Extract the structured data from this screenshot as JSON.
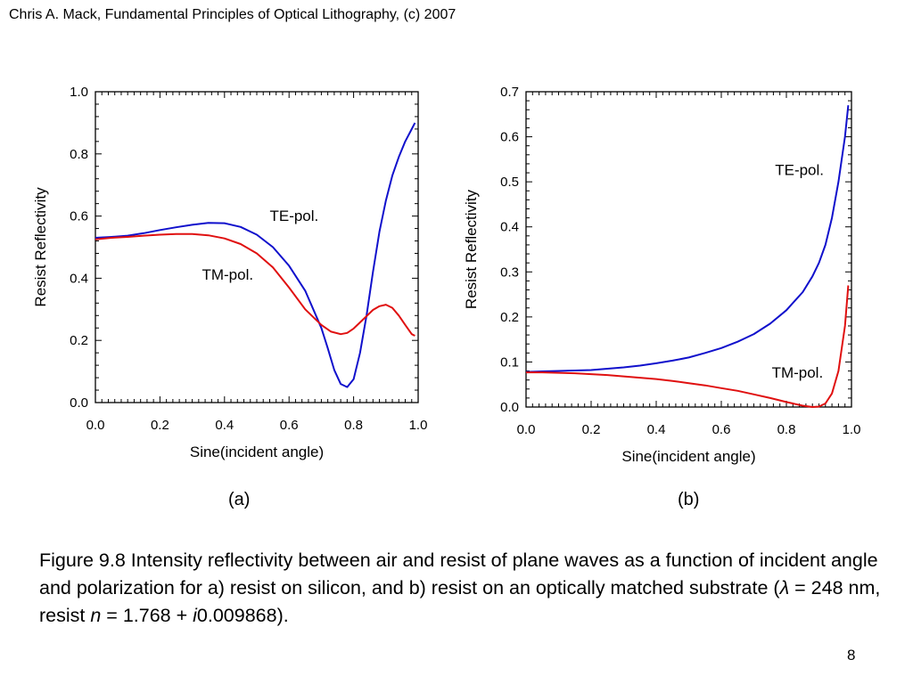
{
  "header": "Chris A. Mack, Fundamental Principles of Optical Lithography, (c) 2007",
  "panels": {
    "a": "(a)",
    "b": "(b)"
  },
  "caption": {
    "part1": "Figure 9.8  Intensity reflectivity between air and resist of plane waves as a function of incident angle and polarization for a) resist on silicon, and b) resist on an optically matched substrate (",
    "lambda": "λ",
    "part2": " = 248 nm, resist ",
    "n": "n",
    "part3": " = 1.768 + ",
    "i": "i",
    "part4": "0.009868)."
  },
  "page_number": "8",
  "colors": {
    "te": "#1010cc",
    "tm": "#e01010",
    "axis": "#000000"
  },
  "chart_data": [
    {
      "type": "line",
      "panel": "a",
      "xlabel": "Sine(incident angle)",
      "ylabel": "Resist Reflectivity",
      "xlim": [
        0,
        1.0
      ],
      "ylim": [
        0,
        1.0
      ],
      "xticks": [
        "0.0",
        "0.2",
        "0.4",
        "0.6",
        "0.8",
        "1.0"
      ],
      "yticks": [
        "0.0",
        "0.2",
        "0.4",
        "0.6",
        "0.8",
        "1.0"
      ],
      "annotations": [
        {
          "text": "TE-pol.",
          "x": 0.54,
          "y": 0.585
        },
        {
          "text": "TM-pol.",
          "x": 0.33,
          "y": 0.395
        }
      ],
      "series": [
        {
          "name": "TE-pol.",
          "color": "#1010cc",
          "x": [
            0.0,
            0.05,
            0.1,
            0.15,
            0.2,
            0.25,
            0.3,
            0.35,
            0.4,
            0.45,
            0.5,
            0.55,
            0.6,
            0.65,
            0.7,
            0.72,
            0.74,
            0.76,
            0.78,
            0.8,
            0.82,
            0.84,
            0.86,
            0.88,
            0.9,
            0.92,
            0.94,
            0.96,
            0.98,
            0.99
          ],
          "y": [
            0.53,
            0.533,
            0.537,
            0.545,
            0.555,
            0.564,
            0.572,
            0.578,
            0.577,
            0.565,
            0.54,
            0.5,
            0.44,
            0.36,
            0.24,
            0.175,
            0.105,
            0.06,
            0.05,
            0.075,
            0.16,
            0.28,
            0.42,
            0.55,
            0.65,
            0.73,
            0.79,
            0.84,
            0.88,
            0.9
          ]
        },
        {
          "name": "TM-pol.",
          "color": "#e01010",
          "x": [
            0.0,
            0.05,
            0.1,
            0.15,
            0.2,
            0.25,
            0.3,
            0.35,
            0.4,
            0.45,
            0.5,
            0.55,
            0.6,
            0.65,
            0.7,
            0.73,
            0.76,
            0.78,
            0.8,
            0.82,
            0.84,
            0.86,
            0.88,
            0.9,
            0.92,
            0.94,
            0.96,
            0.98,
            0.99
          ],
          "y": [
            0.525,
            0.53,
            0.533,
            0.537,
            0.54,
            0.542,
            0.542,
            0.538,
            0.528,
            0.51,
            0.48,
            0.435,
            0.37,
            0.3,
            0.25,
            0.228,
            0.22,
            0.224,
            0.238,
            0.258,
            0.278,
            0.298,
            0.31,
            0.315,
            0.305,
            0.28,
            0.25,
            0.22,
            0.215
          ]
        }
      ]
    },
    {
      "type": "line",
      "panel": "b",
      "xlabel": "Sine(incident angle)",
      "ylabel": "Resist Reflectivity",
      "xlim": [
        0,
        1.0
      ],
      "ylim": [
        0,
        0.7
      ],
      "xticks": [
        "0.0",
        "0.2",
        "0.4",
        "0.6",
        "0.8",
        "1.0"
      ],
      "yticks": [
        "0.0",
        "0.1",
        "0.2",
        "0.3",
        "0.4",
        "0.5",
        "0.6",
        "0.7"
      ],
      "annotations": [
        {
          "text": "TE-pol.",
          "x": 0.765,
          "y": 0.515
        },
        {
          "text": "TM-pol.",
          "x": 0.755,
          "y": 0.065
        }
      ],
      "series": [
        {
          "name": "TE-pol.",
          "color": "#1010cc",
          "x": [
            0.0,
            0.05,
            0.1,
            0.15,
            0.2,
            0.25,
            0.3,
            0.35,
            0.4,
            0.45,
            0.5,
            0.55,
            0.6,
            0.65,
            0.7,
            0.75,
            0.8,
            0.85,
            0.88,
            0.9,
            0.92,
            0.94,
            0.96,
            0.98,
            0.99
          ],
          "y": [
            0.078,
            0.079,
            0.08,
            0.081,
            0.082,
            0.085,
            0.088,
            0.092,
            0.097,
            0.103,
            0.11,
            0.12,
            0.131,
            0.145,
            0.162,
            0.185,
            0.215,
            0.255,
            0.29,
            0.32,
            0.36,
            0.42,
            0.5,
            0.6,
            0.67
          ]
        },
        {
          "name": "TM-pol.",
          "color": "#e01010",
          "x": [
            0.0,
            0.05,
            0.1,
            0.15,
            0.2,
            0.25,
            0.3,
            0.35,
            0.4,
            0.45,
            0.5,
            0.55,
            0.6,
            0.65,
            0.7,
            0.75,
            0.8,
            0.85,
            0.88,
            0.9,
            0.92,
            0.94,
            0.96,
            0.98,
            0.99
          ],
          "y": [
            0.077,
            0.077,
            0.076,
            0.075,
            0.073,
            0.071,
            0.068,
            0.065,
            0.062,
            0.058,
            0.053,
            0.048,
            0.042,
            0.036,
            0.028,
            0.02,
            0.011,
            0.003,
            0.0,
            0.001,
            0.008,
            0.03,
            0.08,
            0.18,
            0.27
          ]
        }
      ]
    }
  ]
}
